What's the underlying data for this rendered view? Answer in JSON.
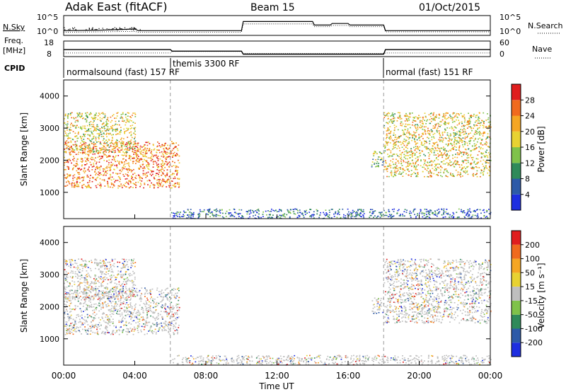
{
  "header": {
    "station": "Adak East (fitACF)",
    "beam": "Beam 15",
    "date": "01/Oct/2015"
  },
  "noise_panel": {
    "left_label": "N.Sky",
    "right_label": "N.Search",
    "left_ticks": [
      "10^5",
      "10^0"
    ],
    "right_ticks": [
      "10^5",
      "10^0"
    ]
  },
  "freq_panel": {
    "left_label_line1": "Freq.",
    "left_label_line2": "[MHz]",
    "right_label": "Nave",
    "left_ticks": [
      "18",
      "8"
    ],
    "right_ticks": [
      "60",
      "0"
    ]
  },
  "cpid": {
    "label": "CPID",
    "segments": [
      {
        "name": "normalsound (fast) 157 RF",
        "start_h": 0,
        "end_h": 6
      },
      {
        "name": "themis 3300 RF",
        "start_h": 6,
        "end_h": 18
      },
      {
        "name": "normal (fast) 151 RF",
        "start_h": 18,
        "end_h": 24
      }
    ]
  },
  "axes": {
    "xlabel": "Time UT",
    "ylabel": "Slant Range [km]",
    "xticks": [
      "00:00",
      "04:00",
      "08:00",
      "12:00",
      "16:00",
      "20:00",
      "00:00"
    ],
    "yticks": [
      "1000",
      "2000",
      "3000",
      "4000"
    ]
  },
  "chart_data": [
    {
      "type": "line",
      "name": "noise",
      "x_hours": [
        0,
        2,
        4,
        4.2,
        10,
        10.1,
        14,
        14.1,
        15,
        15.1,
        16,
        16.1,
        18,
        18.1,
        24
      ],
      "sky_log10": [
        1.2,
        1.3,
        1.6,
        1.2,
        1.2,
        3.5,
        3.5,
        2.6,
        2.6,
        3.0,
        3.0,
        2.6,
        2.6,
        1.2,
        1.2
      ],
      "search_log10": [
        0.8,
        0.9,
        1.0,
        0.8,
        0.8,
        2.9,
        2.9,
        2.2,
        2.2,
        2.5,
        2.5,
        2.2,
        2.2,
        0.9,
        0.9
      ]
    },
    {
      "type": "line",
      "name": "frequency",
      "x_hours": [
        0,
        6,
        6.1,
        10,
        10.1,
        18,
        18.1,
        24
      ],
      "freq_mhz": [
        12.5,
        12.5,
        11.5,
        11.5,
        9.6,
        9.6,
        12.5,
        12.5
      ],
      "nave": [
        14,
        14,
        20,
        20,
        12,
        12,
        14,
        14
      ]
    },
    {
      "type": "heatmap",
      "name": "power",
      "colorbar_label": "Power [dB]",
      "colorbar_ticks": [
        "4",
        "8",
        "12",
        "16",
        "20",
        "24",
        "28"
      ],
      "colorbar_colors": [
        "#1e2ee0",
        "#2d5aa8",
        "#2f8a5a",
        "#7fc24a",
        "#e8d232",
        "#f5a623",
        "#f06a1e",
        "#e01e1e"
      ],
      "xlim_hours": [
        0,
        24
      ],
      "ylim_km": [
        180,
        4500
      ],
      "bands": [
        {
          "t0": 0.0,
          "t1": 6.5,
          "r0": 1150,
          "r1": 2600,
          "level": 0.8
        },
        {
          "t0": 0.0,
          "t1": 4.0,
          "r0": 2250,
          "r1": 3500,
          "level": 0.55
        },
        {
          "t0": 17.3,
          "t1": 18.0,
          "r0": 1800,
          "r1": 2300,
          "level": 0.4
        },
        {
          "t0": 18.0,
          "t1": 24.0,
          "r0": 1500,
          "r1": 3500,
          "level": 0.6
        },
        {
          "t0": 6.0,
          "t1": 24.0,
          "r0": 200,
          "r1": 500,
          "level": 0.15
        }
      ]
    },
    {
      "type": "heatmap",
      "name": "velocity",
      "colorbar_label": "Velocity [m s⁻¹]",
      "colorbar_ticks": [
        "200",
        "100",
        "50",
        "15",
        "-15",
        "-50",
        "-100",
        "-200"
      ],
      "colorbar_colors": [
        "#1e2ee0",
        "#2d5aa8",
        "#2f8a5a",
        "#7fc24a",
        "#bfbfbf",
        "#e8d232",
        "#f5a623",
        "#f06a1e",
        "#e01e1e"
      ],
      "xlim_hours": [
        0,
        24
      ],
      "ylim_km": [
        180,
        4500
      ],
      "bands": [
        {
          "t0": 0.0,
          "t1": 6.5,
          "r0": 1150,
          "r1": 2600,
          "level": 0.5
        },
        {
          "t0": 0.0,
          "t1": 4.0,
          "r0": 2250,
          "r1": 3500,
          "level": 0.5
        },
        {
          "t0": 17.3,
          "t1": 18.0,
          "r0": 1800,
          "r1": 2300,
          "level": 0.35
        },
        {
          "t0": 18.0,
          "t1": 24.0,
          "r0": 1500,
          "r1": 3500,
          "level": 0.5
        },
        {
          "t0": 6.0,
          "t1": 24.0,
          "r0": 200,
          "r1": 500,
          "level": 0.35
        }
      ]
    }
  ]
}
